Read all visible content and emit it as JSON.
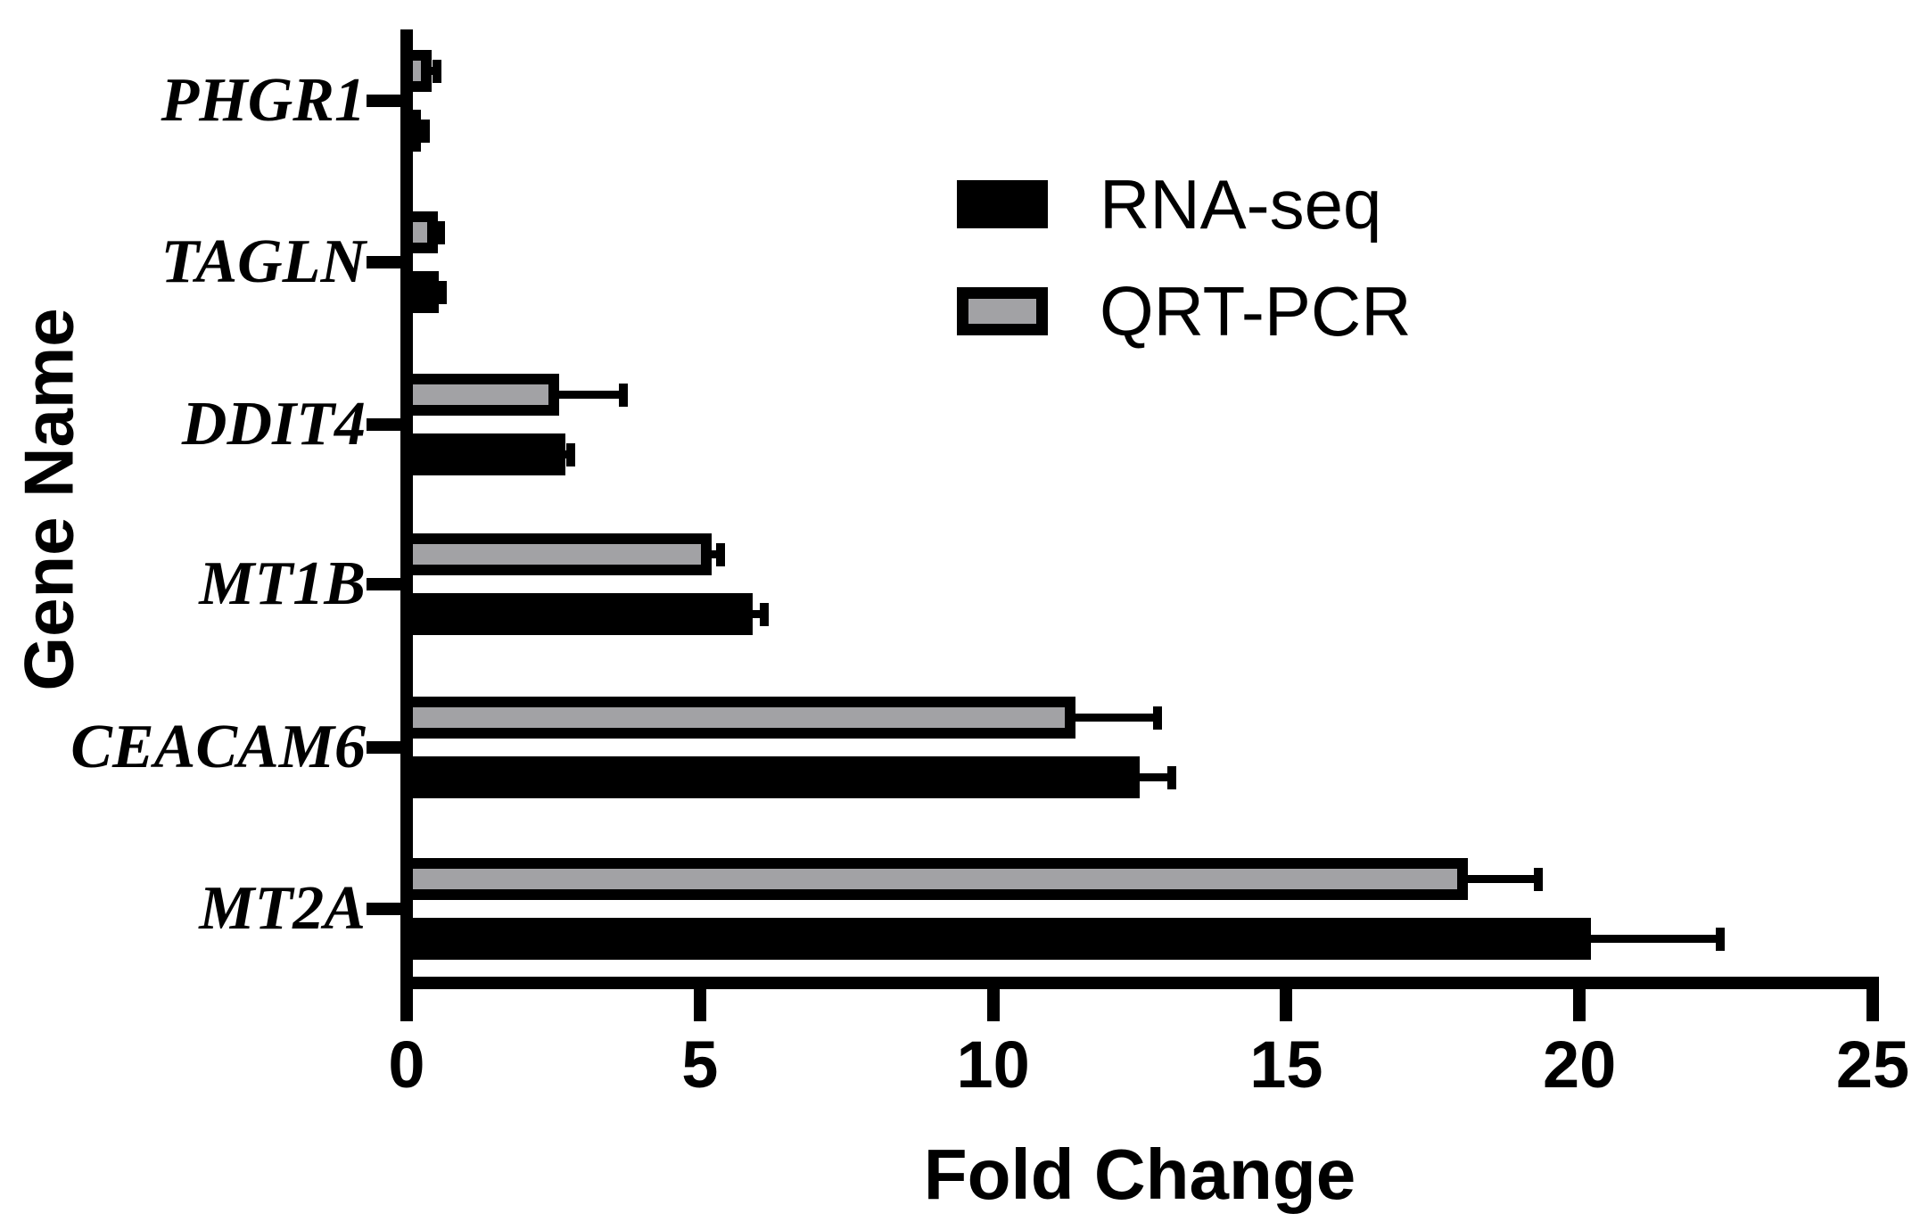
{
  "figure": {
    "xlabel": "Fold Change",
    "ylabel": "Gene Name"
  },
  "legend": {
    "items": [
      {
        "label": "RNA-seq",
        "swatch": "solid-black"
      },
      {
        "label": "QRT-PCR",
        "swatch": "gray-fill-black-border"
      }
    ]
  },
  "colors": {
    "black": "#000000",
    "gray_fill": "#a2a2a5"
  },
  "chart_data": {
    "type": "bar",
    "orientation": "horizontal",
    "title": "",
    "xlabel": "Fold Change",
    "ylabel": "Gene Name",
    "xlim": [
      0,
      25
    ],
    "xticks": [
      0,
      5,
      10,
      15,
      20,
      25
    ],
    "grid": false,
    "legend_position": "upper-right-inside",
    "error_bars": "positive-only",
    "categories_top_to_bottom": [
      "PHGR1",
      "TAGLN",
      "DDIT4",
      "MT1B",
      "CEACAM6",
      "MT2A"
    ],
    "series": [
      {
        "name": "RNA-seq",
        "color": "#000000",
        "style": "solid",
        "position_in_group": "bottom",
        "values": [
          0.25,
          0.54,
          2.7,
          5.9,
          12.5,
          20.2
        ],
        "errors": [
          0.07,
          0.07,
          0.1,
          0.2,
          0.55,
          2.2
        ]
      },
      {
        "name": "QRT-PCR",
        "color": "#a2a2a5",
        "style": "gray-with-black-border",
        "position_in_group": "top",
        "values": [
          0.42,
          0.53,
          2.6,
          5.2,
          11.4,
          18.1
        ],
        "errors": [
          0.09,
          0.05,
          1.1,
          0.15,
          1.4,
          1.2
        ]
      }
    ]
  }
}
